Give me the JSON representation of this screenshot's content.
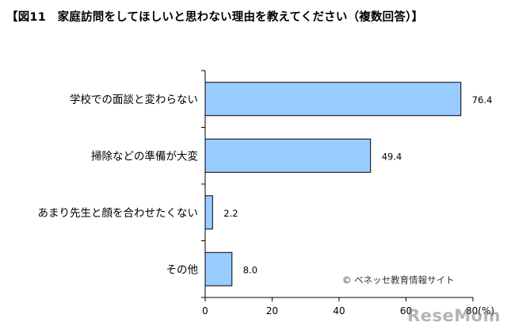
{
  "chart_data": {
    "type": "bar",
    "orientation": "horizontal",
    "title": "【図11　家庭訪問をしてほしいと思わない理由を教えてください（複数回答）】",
    "categories": [
      "学校での面談と変わらない",
      "掃除などの準備が大変",
      "あまり先生と顔を合わせたくない",
      "その他"
    ],
    "values": [
      76.4,
      49.4,
      2.2,
      8.0
    ],
    "value_labels": [
      "76.4",
      "49.4",
      "2.2",
      "8.0"
    ],
    "x_ticks": [
      "0",
      "20",
      "40",
      "60",
      "80(%)"
    ],
    "xlim": [
      0,
      80
    ],
    "grid": false,
    "bar_color": "#99ccff"
  },
  "credit": "© ベネッセ教育情報サイト",
  "watermark": "ReseMom"
}
